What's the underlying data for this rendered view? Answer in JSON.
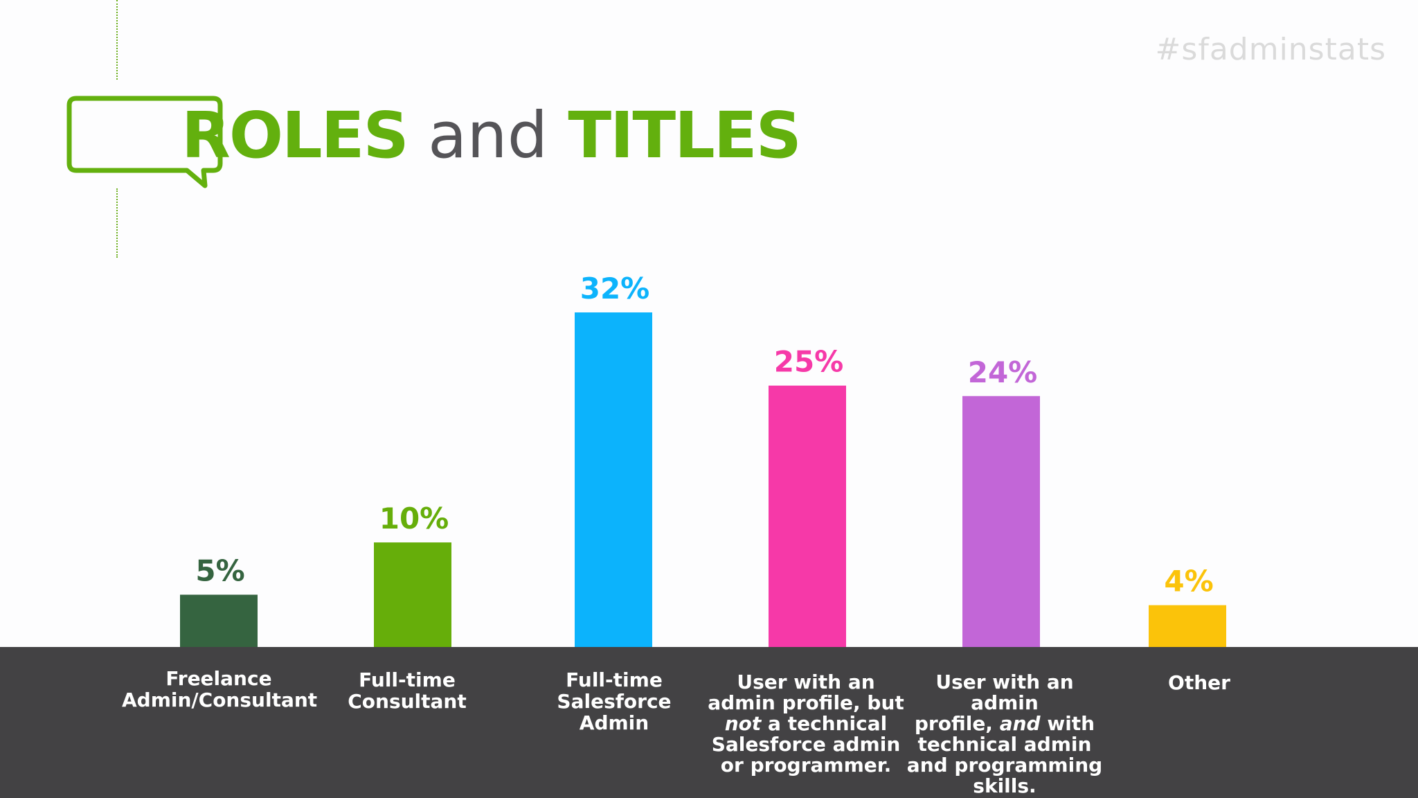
{
  "hashtag": "#sfadminstats",
  "title": {
    "part1": "ROLES",
    "part2": "and",
    "part3": "TITLES"
  },
  "colors": {
    "title_green": "#63b00e",
    "title_gray": "#555458",
    "footer": "#434244",
    "icon": "speech-bubble-icon"
  },
  "chart_data": {
    "type": "bar",
    "categories": [
      "Freelance Admin/Consultant",
      "Full-time Consultant",
      "Full-time Salesforce Admin",
      "User with an admin profile, but not a technical Salesforce admin or programmer.",
      "User with an admin profile, and with technical admin and programming skills.",
      "Other"
    ],
    "values": [
      5,
      10,
      32,
      25,
      24,
      4
    ],
    "data_labels": [
      "5%",
      "10%",
      "32%",
      "25%",
      "24%",
      "4%"
    ],
    "colors": [
      "#356440",
      "#66ae0a",
      "#0cb3fc",
      "#f639a8",
      "#c266d7",
      "#fbc30a"
    ],
    "ylim": [
      0,
      32
    ],
    "grid": false,
    "legend": "none"
  },
  "labels": {
    "c0": [
      "Freelance",
      "Admin/Consultant"
    ],
    "c1": [
      "Full-time",
      "Consultant"
    ],
    "c2": [
      "Full-time",
      "Salesforce",
      "Admin"
    ],
    "c3": {
      "l1": "User with an",
      "l2": "admin profile, but",
      "l3_em": "not",
      "l3_rest": " a technical",
      "l4": "Salesforce admin",
      "l5": "or programmer."
    },
    "c4": {
      "l1": "User with an admin",
      "l2_a": "profile, ",
      "l2_em": "and",
      "l2_b": " with",
      "l3": "technical admin",
      "l4": "and programming",
      "l5": "skills."
    },
    "c5": [
      "Other"
    ]
  }
}
